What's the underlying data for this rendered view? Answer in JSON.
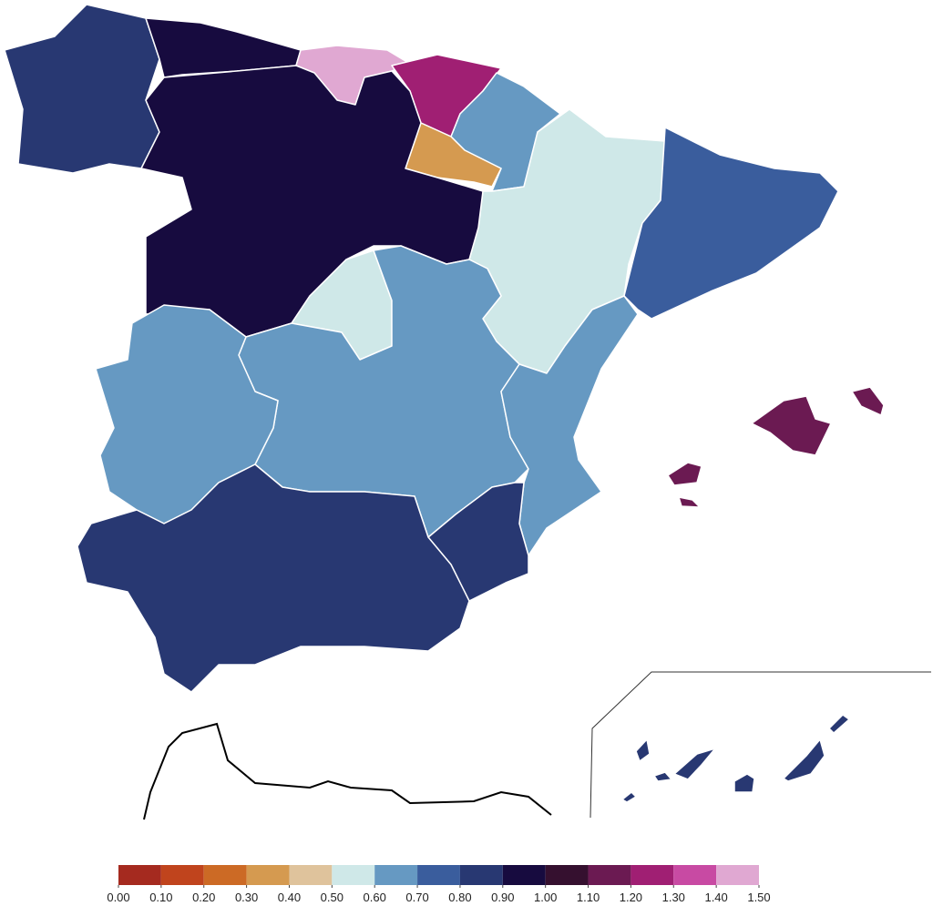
{
  "legend": {
    "ticks": [
      {
        "value": 0,
        "label": "0.00"
      },
      {
        "value": 0.1,
        "label": "0.10"
      },
      {
        "value": 0.2,
        "label": "0.20"
      },
      {
        "value": 0.3,
        "label": "0.30"
      },
      {
        "value": 0.4,
        "label": "0.40"
      },
      {
        "value": 0.5,
        "label": "0.50"
      },
      {
        "value": 0.6,
        "label": "0.60"
      },
      {
        "value": 0.7,
        "label": "0.70"
      },
      {
        "value": 0.8,
        "label": "0.80"
      },
      {
        "value": 0.9,
        "label": "0.90"
      },
      {
        "value": 1,
        "label": "1.00"
      },
      {
        "value": 1.1,
        "label": "1.10"
      },
      {
        "value": 1.2,
        "label": "1.20"
      },
      {
        "value": 1.3,
        "label": "1.30"
      },
      {
        "value": 1.4,
        "label": "1.40"
      },
      {
        "value": 1.5,
        "label": "1.50"
      }
    ],
    "colors": [
      "#a52a1f",
      "#c0441d",
      "#cc6a25",
      "#d59a50",
      "#dfc39c",
      "#cfe8e8",
      "#6699c2",
      "#3a5d9d",
      "#283872",
      "#170b3f",
      "#35102f",
      "#6b1a52",
      "#a01f73",
      "#c84aa3",
      "#e0a8d2"
    ]
  },
  "regions": [
    0.85,
    0.95,
    1.45,
    1.25,
    0.65,
    0.35,
    0.55,
    0.75,
    0.95,
    0.55,
    0.65,
    0.65,
    0.65,
    0.85,
    0.85,
    1.15,
    0.85
  ]
}
